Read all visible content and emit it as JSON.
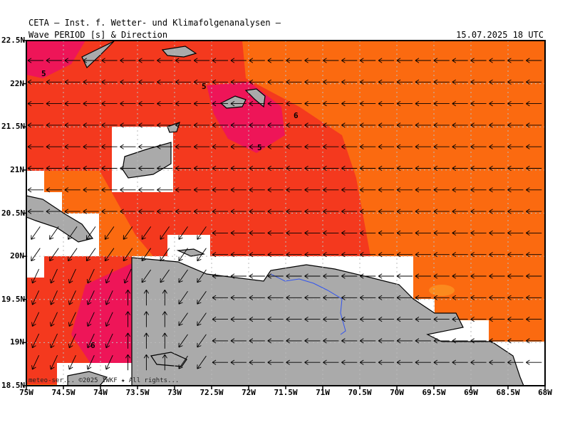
{
  "header": {
    "title": "CETA — Inst. f. Wetter- und Klimafolgenanalysen —",
    "subtitle": "Wave PERIOD [s] & Direction",
    "timestamp": "15.07.2025 18 UTC"
  },
  "axes": {
    "lat_labels": [
      "22.5N",
      "22N",
      "21.5N",
      "21N",
      "20.5N",
      "20N",
      "19.5N",
      "19N",
      "18.5N"
    ],
    "lon_labels": [
      "75W",
      "74.5W",
      "74W",
      "73.5W",
      "73W",
      "72.5W",
      "72W",
      "71.5W",
      "71W",
      "70.5W",
      "70W",
      "69.5W",
      "69W",
      "68.5W",
      "68W"
    ]
  },
  "contour_labels": [
    "5",
    "5",
    "6",
    "5",
    "6"
  ],
  "credits": "meteo-ser... ©2025 IWKF ★ All rights...",
  "colors": {
    "orange": "#fb6a10",
    "red_orange": "#f4391e",
    "crimson": "#ee1558",
    "magenta": "#ff00ff",
    "land": "#aaaaaa"
  }
}
